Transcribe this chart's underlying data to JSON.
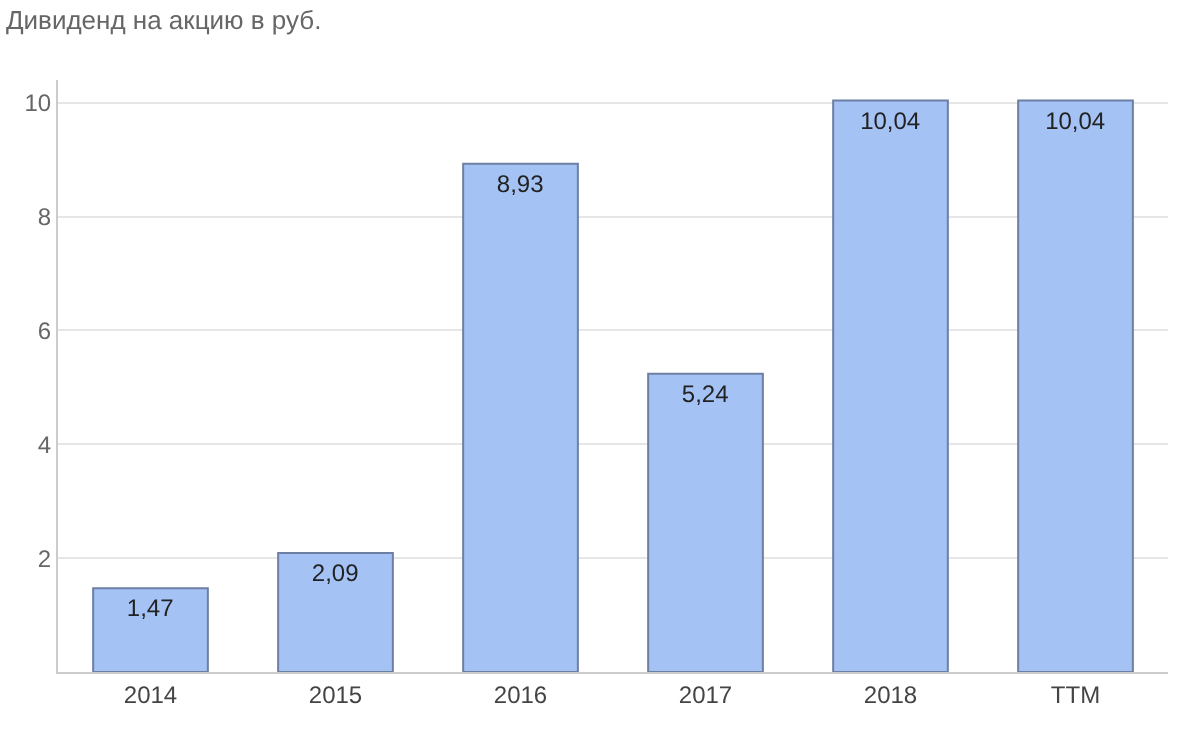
{
  "chart_data": {
    "type": "bar",
    "title": "Дивиденд на акцию в руб.",
    "categories": [
      "2014",
      "2015",
      "2016",
      "2017",
      "2018",
      "TTM"
    ],
    "values": [
      1.47,
      2.09,
      8.93,
      5.24,
      10.04,
      10.04
    ],
    "value_labels": [
      "1,47",
      "2,09",
      "8,93",
      "5,24",
      "10,04",
      "10,04"
    ],
    "color": "#a4c2f4",
    "ylim": [
      0,
      10.4
    ],
    "yticks": [
      2,
      4,
      6,
      8,
      10
    ],
    "grid": "y",
    "legend": false
  }
}
